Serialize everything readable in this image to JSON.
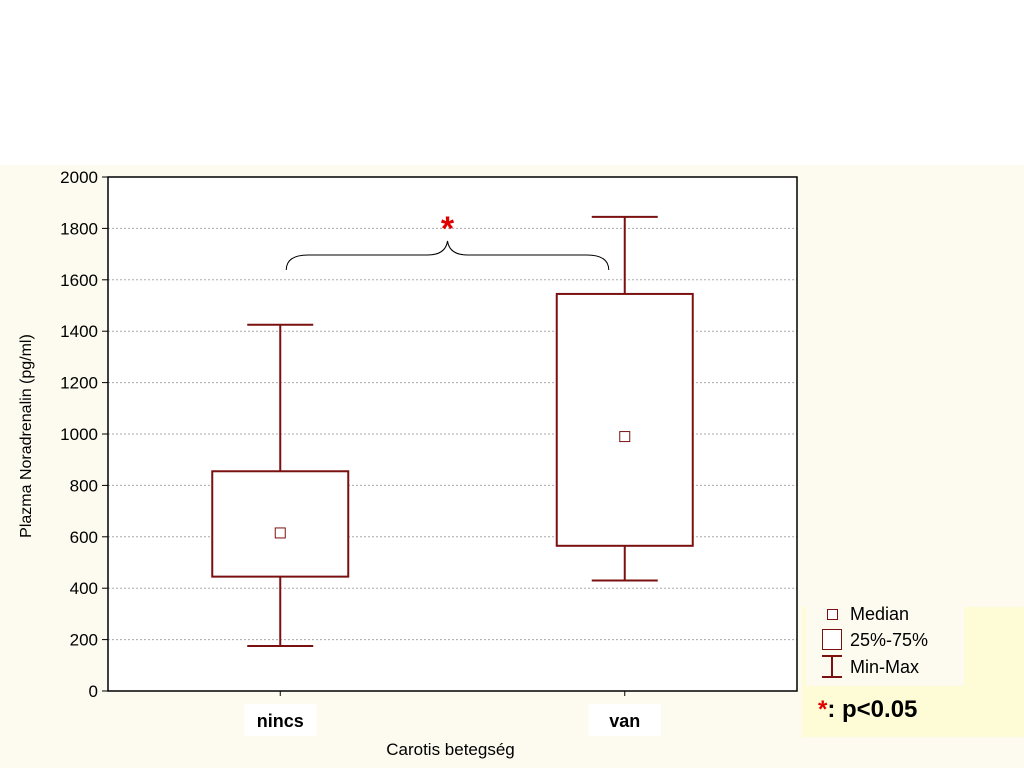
{
  "chart_data": {
    "type": "boxplot",
    "xlabel": "Carotis betegség",
    "ylabel": "Plazma Noradrenalin (pg/ml)",
    "ylim": [
      0,
      2000
    ],
    "yticks": [
      0,
      200,
      400,
      600,
      800,
      1000,
      1200,
      1400,
      1600,
      1800,
      2000
    ],
    "grid": true,
    "categories": [
      "nincs",
      "van"
    ],
    "boxes": [
      {
        "category": "nincs",
        "min": 175,
        "q1": 445,
        "median": 615,
        "q3": 855,
        "max": 1425
      },
      {
        "category": "van",
        "min": 430,
        "q1": 565,
        "median": 990,
        "q3": 1545,
        "max": 1845
      }
    ],
    "significance": {
      "between": [
        "nincs",
        "van"
      ],
      "marker": "*"
    },
    "legend": {
      "position": "bottom-right",
      "entries": [
        "Median",
        "25%-75%",
        "Min-Max"
      ],
      "note_marker": "*",
      "note_text": ": p<0.05"
    }
  },
  "colors": {
    "box": "#7a1010",
    "star": "#e00000",
    "grid": "#aaaaaa"
  }
}
